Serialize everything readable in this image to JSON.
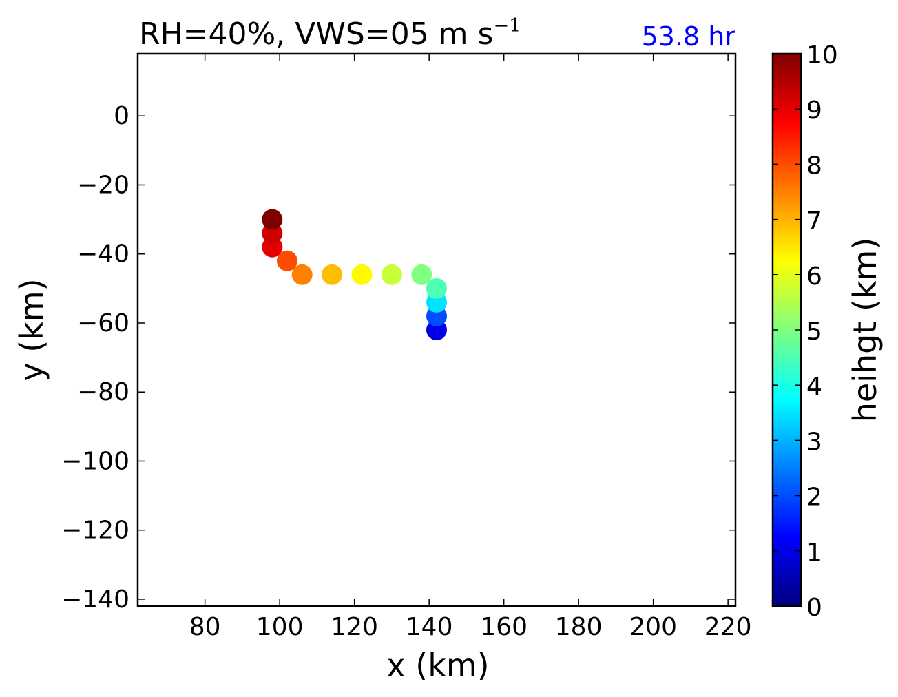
{
  "chart_data": {
    "type": "scatter",
    "title": "RH=40%, VWS=05 m s",
    "title_superscript": "−1",
    "time_label": "53.8 hr",
    "time_label_color": "#0000ff",
    "xlabel": "x (km)",
    "ylabel": "y (km)",
    "xlim": [
      62,
      222
    ],
    "ylim": [
      -142,
      18
    ],
    "xticks": [
      80,
      100,
      120,
      140,
      160,
      180,
      200,
      220
    ],
    "yticks": [
      0,
      -20,
      -40,
      -60,
      -80,
      -100,
      -120,
      -140
    ],
    "xtick_labels": [
      "80",
      "100",
      "120",
      "140",
      "160",
      "180",
      "200",
      "220"
    ],
    "ytick_labels": [
      "0",
      "−20",
      "−40",
      "−60",
      "−80",
      "−100",
      "−120",
      "−140"
    ],
    "grid": false,
    "colormap": "jet",
    "colorbar": {
      "label": "heihgt (km)",
      "range": [
        0,
        10
      ],
      "ticks": [
        0,
        1,
        2,
        3,
        4,
        5,
        6,
        7,
        8,
        9,
        10
      ],
      "tick_labels": [
        "0",
        "1",
        "2",
        "3",
        "4",
        "5",
        "6",
        "7",
        "8",
        "9",
        "10"
      ]
    },
    "points": [
      {
        "x": 142,
        "y": -62,
        "height": 1
      },
      {
        "x": 142,
        "y": -58,
        "height": 2
      },
      {
        "x": 142,
        "y": -54,
        "height": 3.5
      },
      {
        "x": 142,
        "y": -50,
        "height": 4.5
      },
      {
        "x": 138,
        "y": -46,
        "height": 5
      },
      {
        "x": 130,
        "y": -46,
        "height": 5.7
      },
      {
        "x": 122,
        "y": -46,
        "height": 6.3
      },
      {
        "x": 114,
        "y": -46,
        "height": 6.9
      },
      {
        "x": 106,
        "y": -46,
        "height": 7.5
      },
      {
        "x": 102,
        "y": -42,
        "height": 8
      },
      {
        "x": 98,
        "y": -38,
        "height": 9
      },
      {
        "x": 98,
        "y": -34,
        "height": 9.2
      },
      {
        "x": 98,
        "y": -30,
        "height": 10
      }
    ]
  }
}
